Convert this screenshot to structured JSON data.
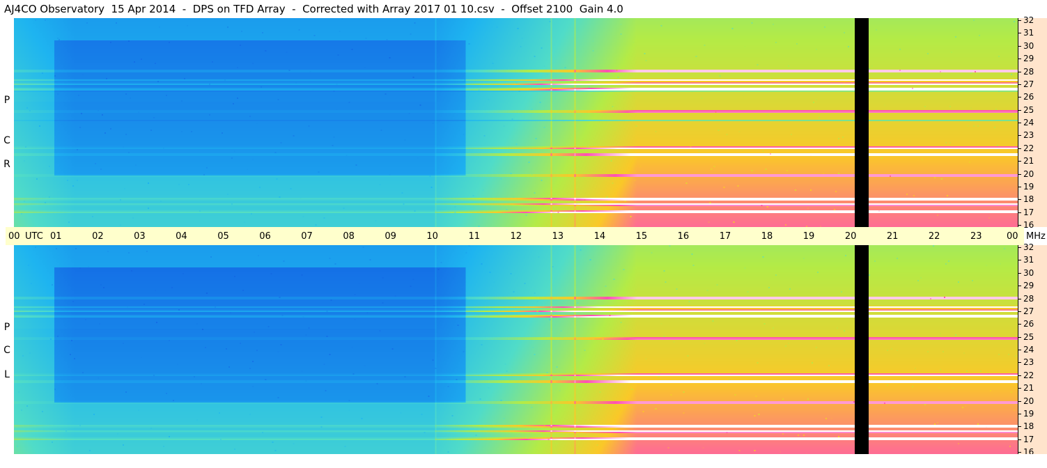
{
  "title": "AJ4CO Observatory  15 Apr 2014  -  DPS on TFD Array  -  Corrected with Array 2017 01 10.csv  -  Offset 2100  Gain 4.0",
  "panels": [
    {
      "id": "rcp",
      "label_chars": [
        "P",
        "C",
        "R"
      ]
    },
    {
      "id": "lcp",
      "label_chars": [
        "P",
        "C",
        "L"
      ]
    }
  ],
  "chart_data": {
    "type": "heatmap",
    "title": "AJ4CO Observatory  15 Apr 2014  -  DPS on TFD Array  -  Corrected with Array 2017 01 10.csv  -  Offset 2100  Gain 4.0",
    "xlabel": "UTC",
    "ylabel": "MHz",
    "x_range_hours": [
      0,
      24
    ],
    "y_range_mhz": [
      16,
      32
    ],
    "x_tick_labels": [
      "00",
      "01",
      "02",
      "03",
      "04",
      "05",
      "06",
      "07",
      "08",
      "09",
      "10",
      "11",
      "12",
      "13",
      "14",
      "15",
      "16",
      "17",
      "18",
      "19",
      "20",
      "21",
      "22",
      "23",
      "00"
    ],
    "x_unit_label": "UTC",
    "y_unit_label": "MHz",
    "y_tick_labels": [
      "32",
      "31",
      "30",
      "29",
      "28",
      "27",
      "26",
      "25",
      "24",
      "23",
      "22",
      "21",
      "20",
      "19",
      "18",
      "17",
      "16"
    ],
    "series": [
      {
        "name": "R C P",
        "panel": "top"
      },
      {
        "name": "L C P",
        "panel": "bottom"
      }
    ],
    "data_gap_hours": [
      20.1,
      20.4
    ],
    "colors": {
      "low": "#0a4fd6",
      "mid": "#1fb2f0",
      "midhigh": "#52e0c0",
      "high": "#c8f040",
      "veryhigh": "#ffb020",
      "peak": "#ff40c0",
      "saturated": "#ffffff",
      "gap": "#000000"
    }
  },
  "colors": {
    "time_axis_bg": "#ffffcc",
    "freq_axis_bg": "#ffe4cc"
  }
}
